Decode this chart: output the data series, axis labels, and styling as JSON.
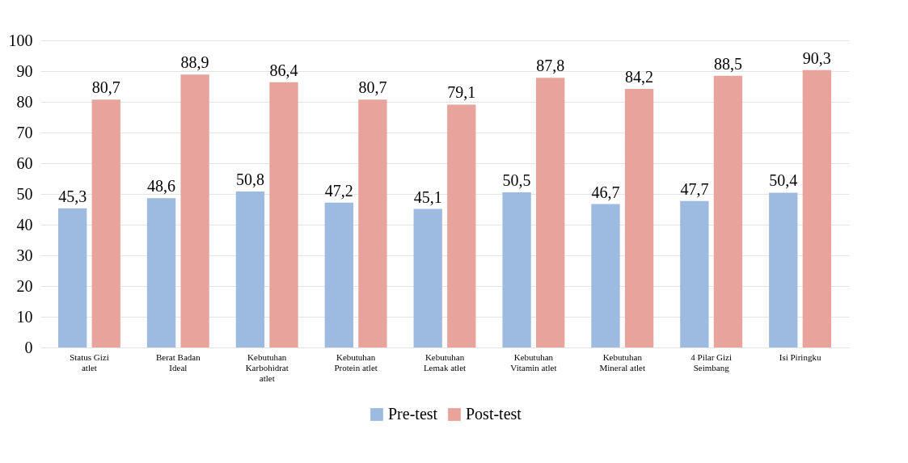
{
  "chart_data": {
    "type": "bar",
    "categories": [
      "Status Gizi atlet",
      "Berat Badan Ideal",
      "Kebutuhan Karbohidrat atlet",
      "Kebutuhan Protein atlet",
      "Kebutuhan Lemak atlet",
      "Kebutuhan Vitamin atlet",
      "Kebutuhan Mineral atlet",
      "4 Pilar Gizi Seimbang",
      "Isi Piringku"
    ],
    "series": [
      {
        "name": "Pre-test",
        "color": "#9dbbe0",
        "values": [
          45.3,
          48.6,
          50.8,
          47.2,
          45.1,
          50.5,
          46.7,
          47.7,
          50.4
        ],
        "value_labels": [
          "45,3",
          "48,6",
          "50,8",
          "47,2",
          "45,1",
          "50,5",
          "46,7",
          "47,7",
          "50,4"
        ]
      },
      {
        "name": "Post-test",
        "color": "#e8a49c",
        "values": [
          80.7,
          88.9,
          86.4,
          80.7,
          79.1,
          87.8,
          84.2,
          88.5,
          90.3
        ],
        "value_labels": [
          "80,7",
          "88,9",
          "86,4",
          "80,7",
          "79,1",
          "87,8",
          "84,2",
          "88,5",
          "90,3"
        ]
      }
    ],
    "ylim": [
      0,
      100
    ],
    "yticks": [
      0,
      10,
      20,
      30,
      40,
      50,
      60,
      70,
      80,
      90,
      100
    ],
    "grid": "y",
    "legend": "bottom"
  }
}
